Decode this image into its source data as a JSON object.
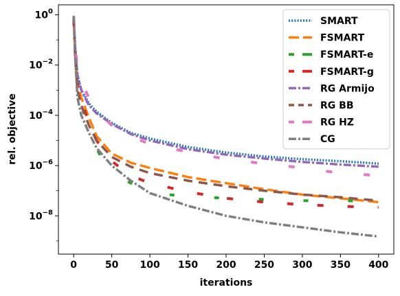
{
  "chart_data": {
    "type": "line",
    "title": "",
    "xlabel": "iterations",
    "ylabel": "rel. objective",
    "xscale": "linear",
    "yscale": "log",
    "xlim": [
      -20,
      420
    ],
    "ylim": [
      3e-10,
      2.5
    ],
    "x_ticks": [
      0,
      50,
      100,
      150,
      200,
      250,
      300,
      350,
      400
    ],
    "x_tick_labels": [
      "0",
      "50",
      "100",
      "150",
      "200",
      "250",
      "300",
      "350",
      "400"
    ],
    "y_ticks": [
      1e-08,
      1e-06,
      0.0001,
      0.01,
      1
    ],
    "y_tick_labels": [
      {
        "base": "10",
        "exp": "−8"
      },
      {
        "base": "10",
        "exp": "−6"
      },
      {
        "base": "10",
        "exp": "−4"
      },
      {
        "base": "10",
        "exp": "−2"
      },
      {
        "base": "10",
        "exp": "0"
      }
    ],
    "grid": false,
    "legend_position": "top-right",
    "series": [
      {
        "name": "SMART",
        "color": "#1f77b4",
        "dash": "2,2.2",
        "width": 3.5,
        "x": [
          0,
          2,
          5,
          10,
          20,
          30,
          50,
          75,
          100,
          150,
          200,
          250,
          300,
          350,
          400
        ],
        "y": [
          0.8,
          0.05,
          0.004,
          0.001,
          0.0003,
          0.00014,
          5e-05,
          2e-05,
          1.2e-05,
          5.5e-06,
          3.3e-06,
          2.3e-06,
          1.8e-06,
          1.5e-06,
          1.2e-06
        ]
      },
      {
        "name": "FSMART",
        "color": "#ff7f0e",
        "dash": "15,6",
        "width": 3.5,
        "x": [
          0,
          2,
          5,
          10,
          20,
          30,
          50,
          75,
          100,
          150,
          200,
          250,
          300,
          350,
          400
        ],
        "y": [
          0.6,
          0.03,
          0.002,
          0.0005,
          8e-05,
          1.5e-05,
          3e-06,
          1.3e-06,
          8e-07,
          3.5e-07,
          2e-07,
          1.15e-07,
          7e-08,
          5e-08,
          3.5e-08
        ]
      },
      {
        "name": "FSMART-e",
        "color": "#2ca02c",
        "dash": "7,58",
        "width": 4,
        "x": [
          0,
          2,
          5,
          10,
          20,
          30,
          40,
          50,
          75,
          100,
          150,
          200,
          250,
          300,
          350,
          400
        ],
        "y": [
          0.6,
          0.03,
          0.002,
          0.0003,
          2e-05,
          5e-06,
          1.2e-06,
          5e-07,
          2e-07,
          8e-08,
          6e-08,
          5e-08,
          4.5e-08,
          4e-08,
          4e-08,
          3.8e-08
        ]
      },
      {
        "name": "FSMART-g",
        "color": "#d62728",
        "dash": "9,35",
        "width": 4,
        "x": [
          0,
          2,
          5,
          10,
          20,
          30,
          50,
          75,
          100,
          150,
          200,
          250,
          300,
          350,
          400
        ],
        "y": [
          0.6,
          0.03,
          0.002,
          0.0004,
          5e-05,
          1e-05,
          1.5e-06,
          4e-07,
          2e-07,
          9e-08,
          5e-08,
          3.5e-08,
          2.8e-08,
          2.4e-08,
          2.2e-08
        ]
      },
      {
        "name": "RG Armijo",
        "color": "#9467bd",
        "dash": "11,3,3,3",
        "width": 3.5,
        "x": [
          0,
          2,
          5,
          10,
          20,
          30,
          50,
          75,
          100,
          150,
          200,
          250,
          300,
          350,
          400
        ],
        "y": [
          0.8,
          0.05,
          0.004,
          0.001,
          0.00025,
          0.00012,
          4.5e-05,
          1.8e-05,
          1e-05,
          4.5e-06,
          2.7e-06,
          1.9e-06,
          1.4e-06,
          1.1e-06,
          9e-07
        ]
      },
      {
        "name": "RG BB",
        "color": "#8c564b",
        "dash": "13,9",
        "width": 3.5,
        "x": [
          0,
          2,
          5,
          10,
          20,
          30,
          50,
          75,
          100,
          150,
          200,
          250,
          300,
          350,
          400
        ],
        "y": [
          0.9,
          0.02,
          0.001,
          0.00025,
          4e-05,
          1e-05,
          2.2e-06,
          9e-07,
          5e-07,
          2.5e-07,
          1.5e-07,
          1e-07,
          7e-08,
          5.5e-08,
          4e-08
        ]
      },
      {
        "name": "RG HZ",
        "color": "#e377c2",
        "dash": "9,46",
        "width": 4,
        "x": [
          0,
          2,
          5,
          10,
          20,
          30,
          50,
          75,
          100,
          150,
          200,
          250,
          300,
          350,
          400
        ],
        "y": [
          0.8,
          0.05,
          0.008,
          0.002,
          0.0005,
          0.00015,
          4e-05,
          1.5e-05,
          7e-06,
          3.5e-06,
          1.8e-06,
          1.2e-06,
          8e-07,
          5e-07,
          4e-07
        ]
      },
      {
        "name": "CG",
        "color": "#7f7f7f",
        "dash": "11,3,3,3",
        "width": 3.5,
        "x": [
          0,
          2,
          5,
          10,
          20,
          30,
          50,
          75,
          100,
          150,
          200,
          250,
          300,
          350,
          400
        ],
        "y": [
          0.9,
          0.02,
          0.0005,
          0.0001,
          2e-05,
          5e-06,
          1e-06,
          2.5e-07,
          8e-08,
          2.5e-08,
          1e-08,
          5.5e-09,
          3.5e-09,
          2.2e-09,
          1.5e-09
        ]
      }
    ]
  }
}
